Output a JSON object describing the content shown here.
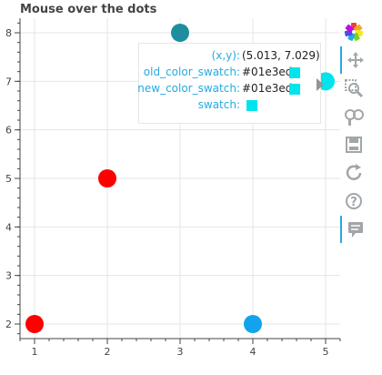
{
  "chart_data": {
    "type": "scatter",
    "title": "Mouse over the dots",
    "xlabel": "",
    "ylabel": "",
    "xlim": [
      0.8,
      5.2
    ],
    "ylim": [
      1.7,
      8.3
    ],
    "xticks": [
      1,
      2,
      3,
      4,
      5
    ],
    "yticks": [
      2,
      3,
      4,
      5,
      6,
      7,
      8
    ],
    "grid": true,
    "points": [
      {
        "x": 1,
        "y": 2,
        "color": "#ff0000"
      },
      {
        "x": 2,
        "y": 5,
        "color": "#ff0000"
      },
      {
        "x": 3,
        "y": 8,
        "color": "#1e8e9f"
      },
      {
        "x": 4,
        "y": 2,
        "color": "#13a3ed"
      },
      {
        "x": 5,
        "y": 7,
        "color": "#01e3ed"
      }
    ]
  },
  "tooltip": {
    "rows": [
      {
        "label": "(x,y):",
        "value": "(5.013, 7.029)",
        "swatch": ""
      },
      {
        "label": "old_color_swatch:",
        "value": "#01e3ed",
        "swatch": "#01e3ed"
      },
      {
        "label": "new_color_swatch:",
        "value": "#01e3ed",
        "swatch": "#01e3ed"
      },
      {
        "label": "swatch:",
        "value": "",
        "swatch": "#01e3ed"
      }
    ]
  },
  "toolbar": {
    "tools": [
      {
        "name": "bokeh-logo",
        "icon": "bokeh-logo-icon",
        "active": false
      },
      {
        "name": "pan",
        "icon": "pan-icon",
        "active": true
      },
      {
        "name": "box-zoom",
        "icon": "box-zoom-icon",
        "active": false
      },
      {
        "name": "wheel-zoom",
        "icon": "wheel-zoom-icon",
        "active": false
      },
      {
        "name": "save",
        "icon": "save-icon",
        "active": false
      },
      {
        "name": "reset",
        "icon": "reset-icon",
        "active": false
      },
      {
        "name": "help",
        "icon": "help-icon",
        "active": false
      },
      {
        "name": "hover",
        "icon": "hover-icon",
        "active": true
      }
    ]
  }
}
